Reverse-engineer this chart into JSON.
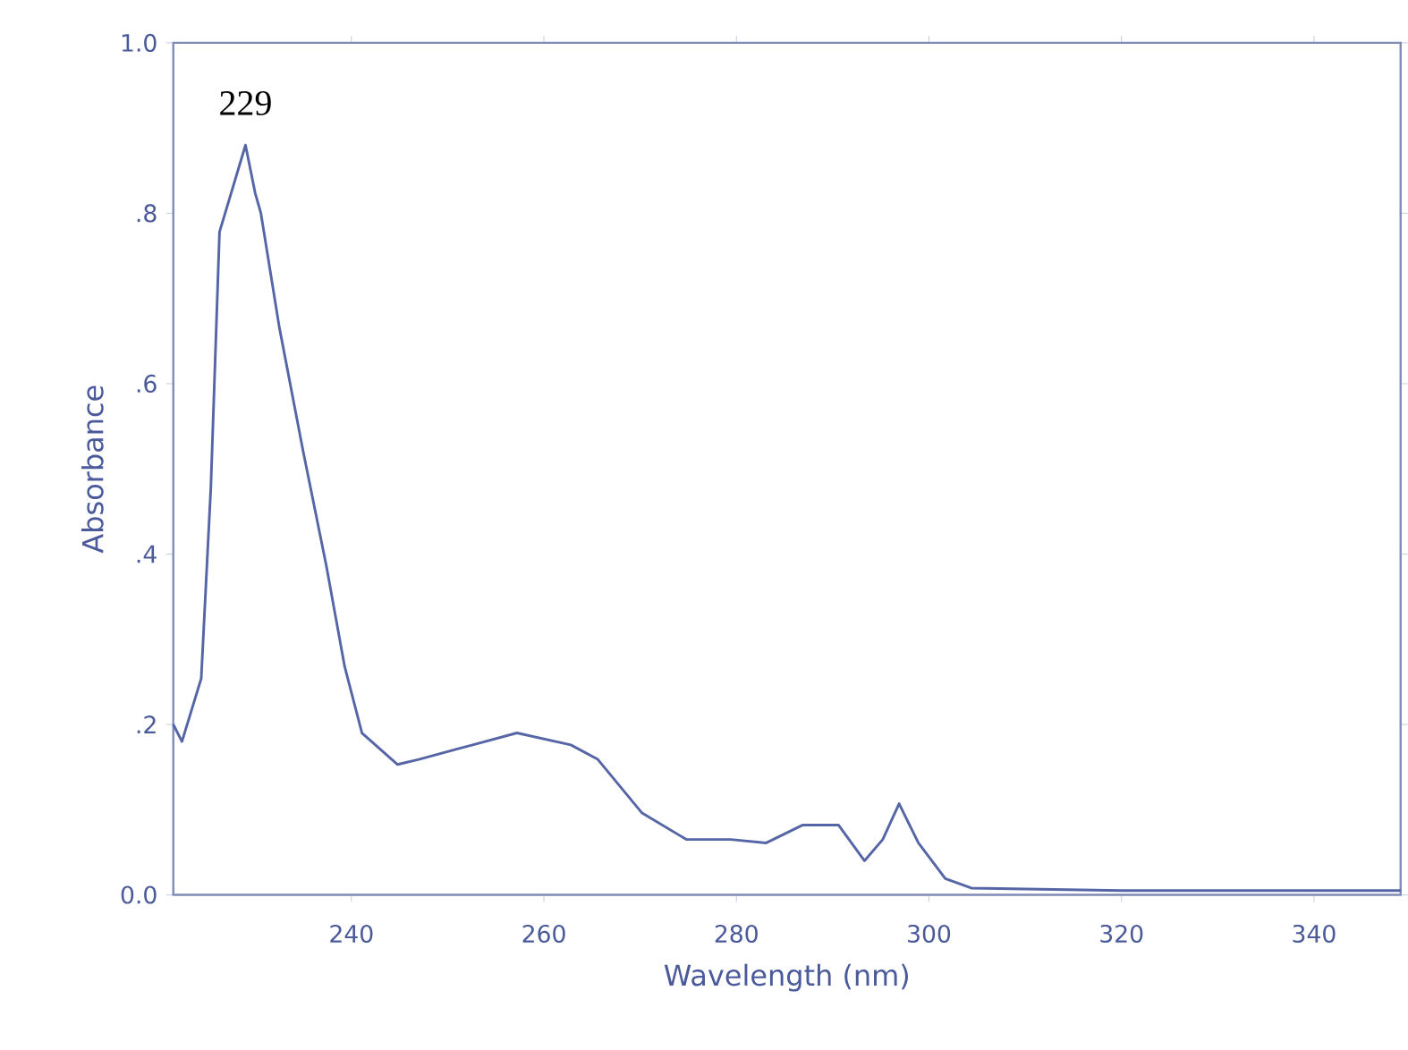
{
  "chart_data": {
    "type": "line",
    "xlabel": "Wavelength (nm)",
    "ylabel": "Absorbance",
    "xlim": [
      221.5,
      349
    ],
    "ylim": [
      0,
      1
    ],
    "xticks": [
      240,
      260,
      280,
      300,
      320,
      340
    ],
    "yticks": [
      {
        "value": 0,
        "label": "0.0"
      },
      {
        "value": 0.2,
        "label": ".2"
      },
      {
        "value": 0.4,
        "label": ".4"
      },
      {
        "value": 0.6,
        "label": ".6"
      },
      {
        "value": 0.8,
        "label": ".8"
      },
      {
        "value": 1,
        "label": "1.0"
      }
    ],
    "annotations": [
      {
        "text": "229",
        "x": 229,
        "y": 0.88
      }
    ],
    "grid": false,
    "marker": "none",
    "line_style": "solid",
    "series": [
      {
        "color": "#5565a5",
        "x": [
          221.5,
          222.4,
          224.4,
          225.4,
          226.3,
          229,
          230,
          230.6,
          232.5,
          235,
          237.4,
          239.3,
          241.1,
          244.8,
          247,
          252.6,
          257.2,
          262.8,
          265.6,
          270.2,
          274.8,
          279.4,
          283.1,
          286.9,
          290.6,
          293.3,
          295.2,
          296.9,
          298.9,
          301.7,
          304.4,
          320,
          349
        ],
        "values": [
          0.2,
          0.18,
          0.254,
          0.478,
          0.778,
          0.88,
          0.824,
          0.8,
          0.667,
          0.52,
          0.386,
          0.268,
          0.19,
          0.153,
          0.159,
          0.176,
          0.19,
          0.176,
          0.159,
          0.096,
          0.065,
          0.065,
          0.061,
          0.082,
          0.082,
          0.04,
          0.065,
          0.107,
          0.061,
          0.019,
          0.008,
          0.005,
          0.005
        ]
      }
    ]
  }
}
